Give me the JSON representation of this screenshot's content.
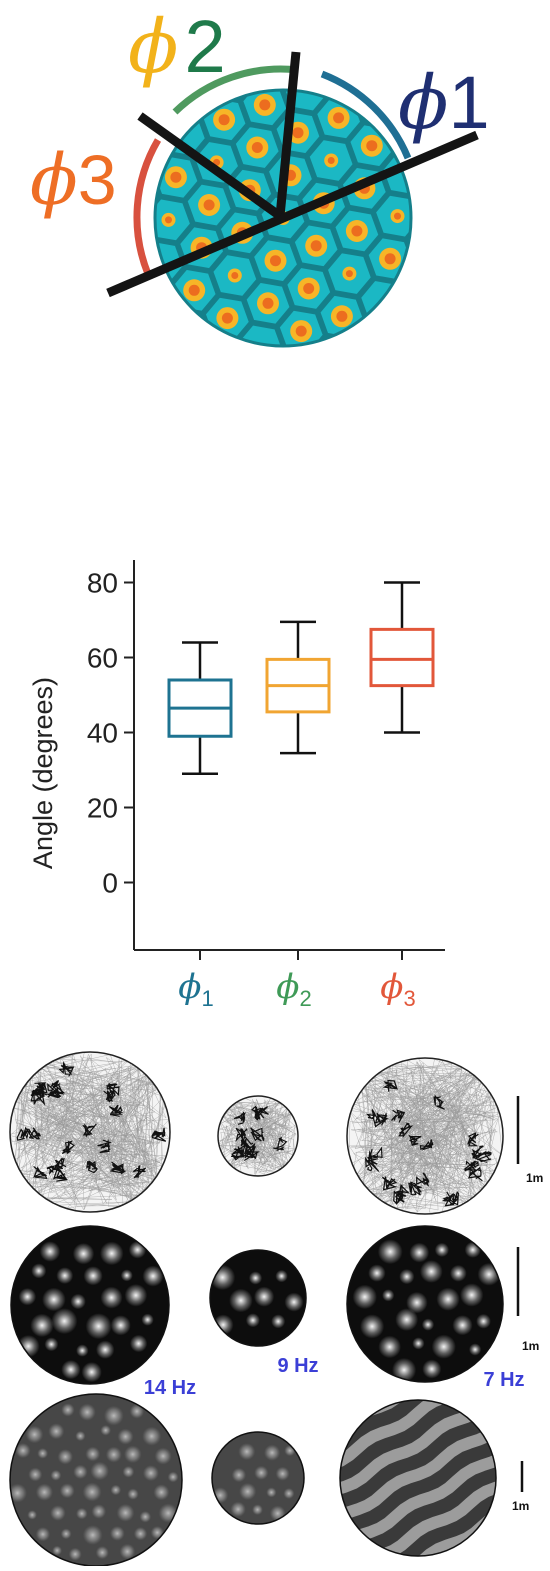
{
  "diagram": {
    "labels": [
      {
        "sym": "ϕ",
        "num": "1",
        "sym_color": "#1f2f72",
        "num_color": "#1f2f72"
      },
      {
        "sym": "ϕ",
        "num": "2",
        "sym_color": "#f2b21a",
        "num_color": "#1f7a4a"
      },
      {
        "sym": "ϕ",
        "num": "3",
        "sym_color": "#ee6e25",
        "num_color": "#ee6e25"
      }
    ],
    "arc_colors": {
      "phi1": "#1f6f94",
      "phi2": "#4f9a5f",
      "phi3": "#d8513f"
    },
    "colors": {
      "cyan": "#1bb8c4",
      "cell_border": "#157f8a",
      "yellow": "#f7b527",
      "orange": "#ec6d1f"
    }
  },
  "chart_data": {
    "type": "box",
    "ylabel": "Angle (degrees)",
    "ylim": [
      -18,
      86
    ],
    "yticks": [
      0,
      20,
      40,
      60,
      80
    ],
    "categories": [
      {
        "sym": "ϕ",
        "sub": "1",
        "color": "#1e7391"
      },
      {
        "sym": "ϕ",
        "sub": "2",
        "color": "#3f9a57"
      },
      {
        "sym": "ϕ",
        "sub": "3",
        "color": "#e2573a"
      }
    ],
    "series": [
      {
        "min": 29,
        "q1": 39,
        "median": 46.5,
        "q3": 54,
        "max": 64,
        "color": "#1e7391"
      },
      {
        "min": 34.5,
        "q1": 45.5,
        "median": 52.5,
        "q3": 59.5,
        "max": 69.5,
        "color": "#f1a532"
      },
      {
        "min": 40,
        "q1": 52.5,
        "median": 59.5,
        "q3": 67.5,
        "max": 80,
        "color": "#e2573a"
      }
    ]
  },
  "maps": {
    "freq_labels": [
      "14 Hz",
      "9 Hz",
      "7 Hz"
    ],
    "freq_color": "#3b3fd6",
    "scale_label": "1m"
  }
}
